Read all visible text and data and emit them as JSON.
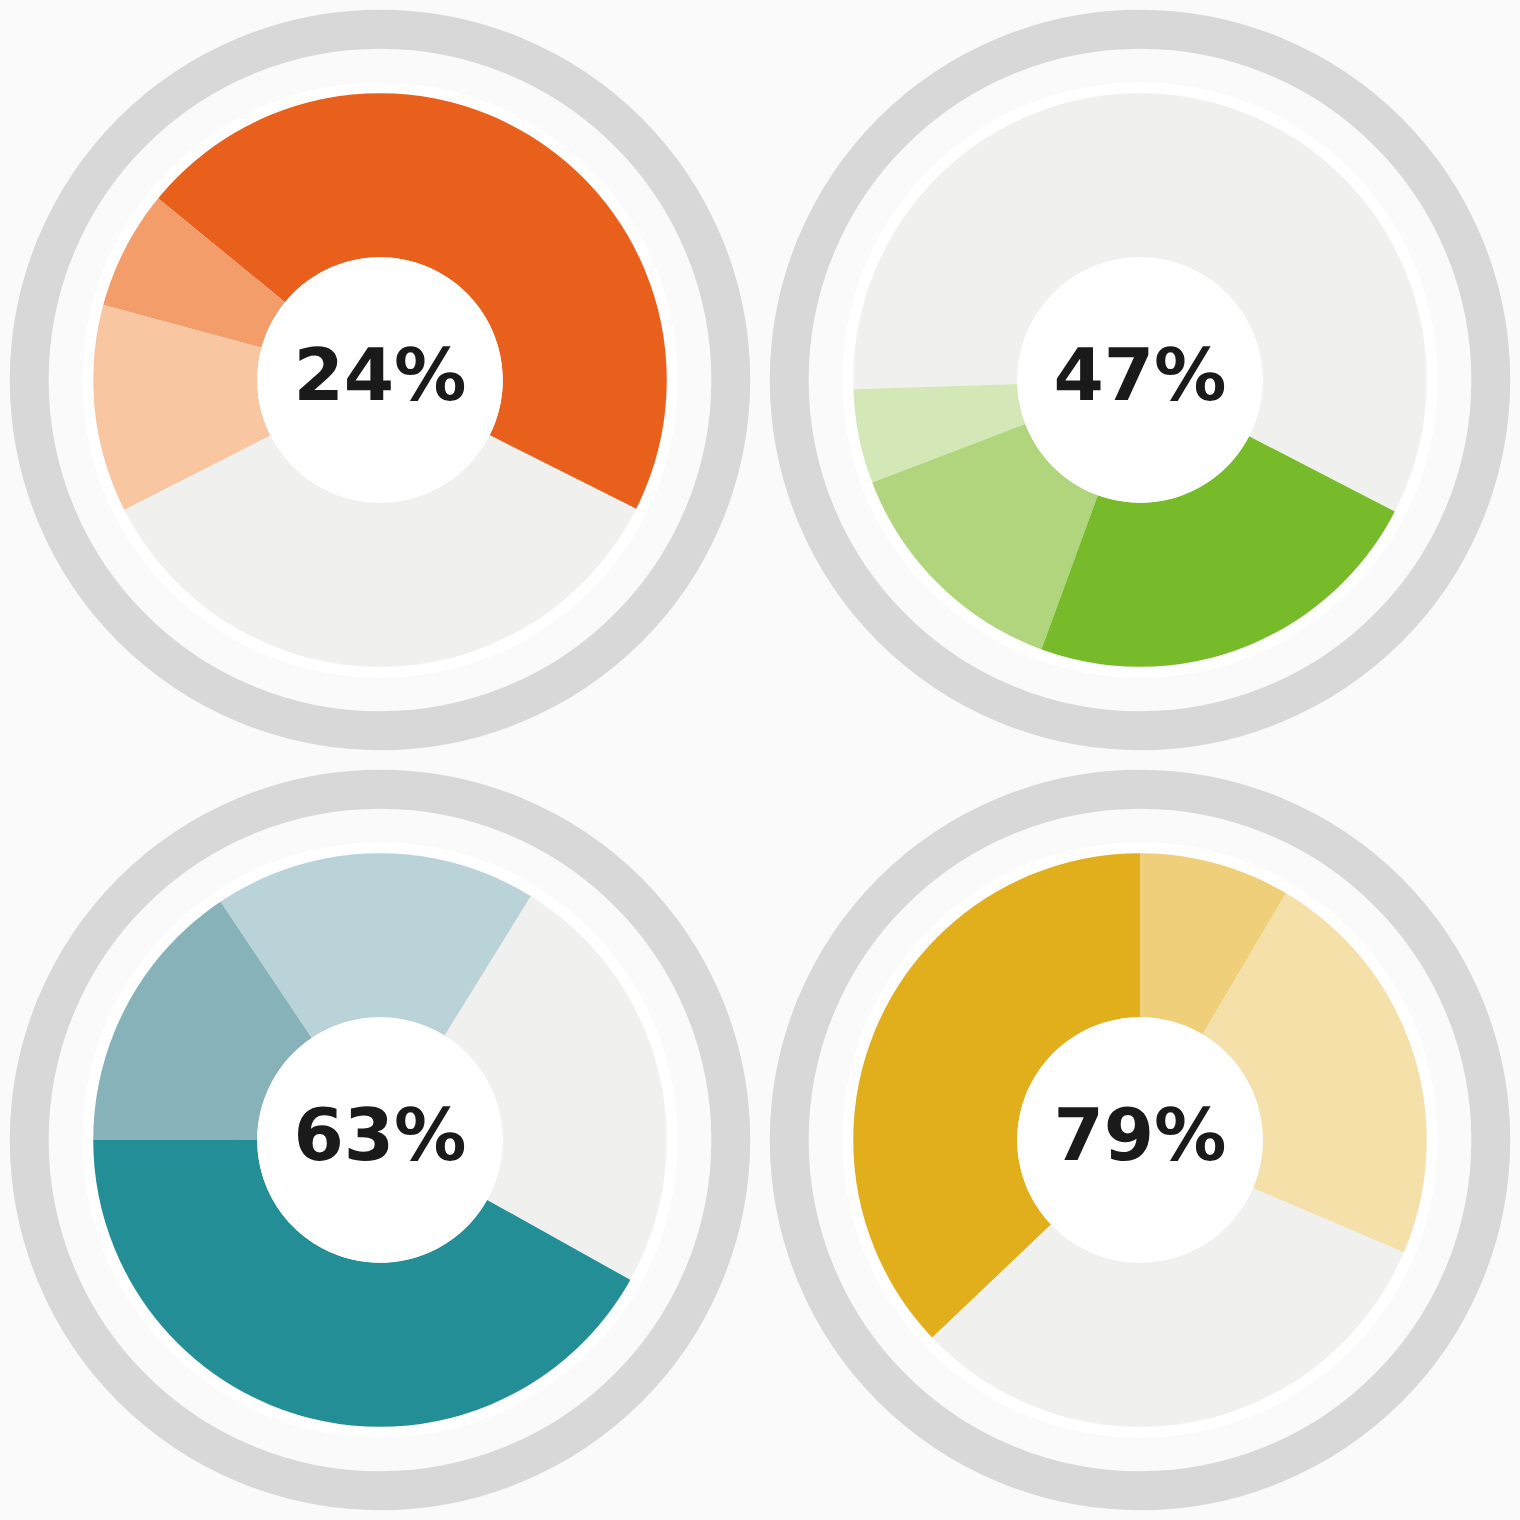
{
  "chart_data": [
    {
      "type": "donut",
      "categories": [
        null,
        null,
        null,
        null
      ],
      "values": [
        46.5,
        6.7,
        11.7,
        35.1
      ],
      "colors": [
        "#e8601c",
        "#f39d6a",
        "#f9c6a2",
        "#f0f0ef"
      ],
      "annotations": [
        "24%"
      ]
    },
    {
      "type": "donut",
      "categories": [
        null,
        null,
        null,
        null
      ],
      "values": [
        58.1,
        5.3,
        13.6,
        23.0
      ],
      "colors": [
        "#f0f0ef",
        "#d3e8b6",
        "#b0d57c",
        "#77bb2b"
      ],
      "annotations": [
        "47%"
      ]
    },
    {
      "type": "donut",
      "categories": [
        null,
        null,
        null,
        null
      ],
      "values": [
        24.3,
        18.2,
        15.6,
        41.9
      ],
      "colors": [
        "#f0f0ef",
        "#b9d3d8",
        "#87b2b9",
        "#238e96"
      ],
      "annotations": [
        "63%"
      ]
    },
    {
      "type": "donut",
      "categories": [
        null,
        null,
        null,
        null
      ],
      "values": [
        37.1,
        31.5,
        22.9,
        8.5
      ],
      "colors": [
        "#e2af1c",
        "#f0f0ef",
        "#f6e0aa",
        "#f0cf7a"
      ],
      "annotations": [
        "79%"
      ]
    }
  ]
}
